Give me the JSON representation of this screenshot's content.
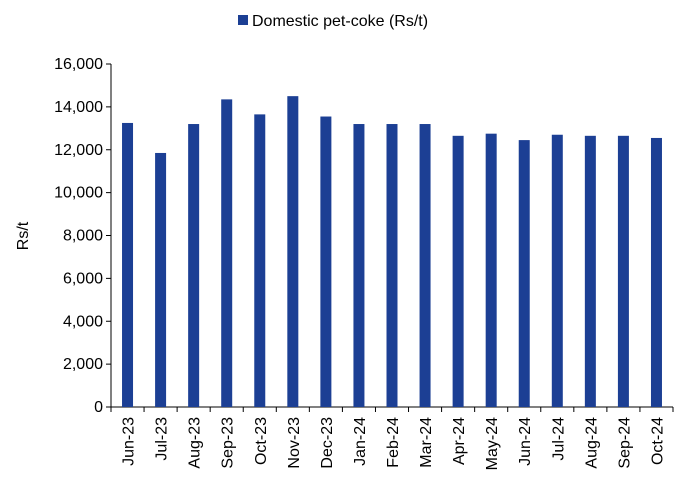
{
  "chart_data": {
    "type": "bar",
    "categories": [
      "Jun-23",
      "Jul-23",
      "Aug-23",
      "Sep-23",
      "Oct-23",
      "Nov-23",
      "Dec-23",
      "Jan-24",
      "Feb-24",
      "Mar-24",
      "Apr-24",
      "May-24",
      "Jun-24",
      "Jul-24",
      "Aug-24",
      "Sep-24",
      "Oct-24"
    ],
    "series": [
      {
        "name": "Domestic pet-coke (Rs/t)",
        "color": "#1c3f94",
        "values": [
          13250,
          11850,
          13200,
          14350,
          13650,
          14500,
          13550,
          13200,
          13200,
          13200,
          12650,
          12750,
          12450,
          12700,
          12650,
          12650,
          12550
        ]
      }
    ],
    "ylabel": "Rs/t",
    "xlabel": "",
    "ylim": [
      0,
      16000
    ],
    "yticks": [
      "0",
      "2,000",
      "4,000",
      "6,000",
      "8,000",
      "10,000",
      "12,000",
      "14,000",
      "16,000"
    ],
    "ytick_values": [
      0,
      2000,
      4000,
      6000,
      8000,
      10000,
      12000,
      14000,
      16000
    ],
    "grid": false,
    "legend_position": "top"
  }
}
